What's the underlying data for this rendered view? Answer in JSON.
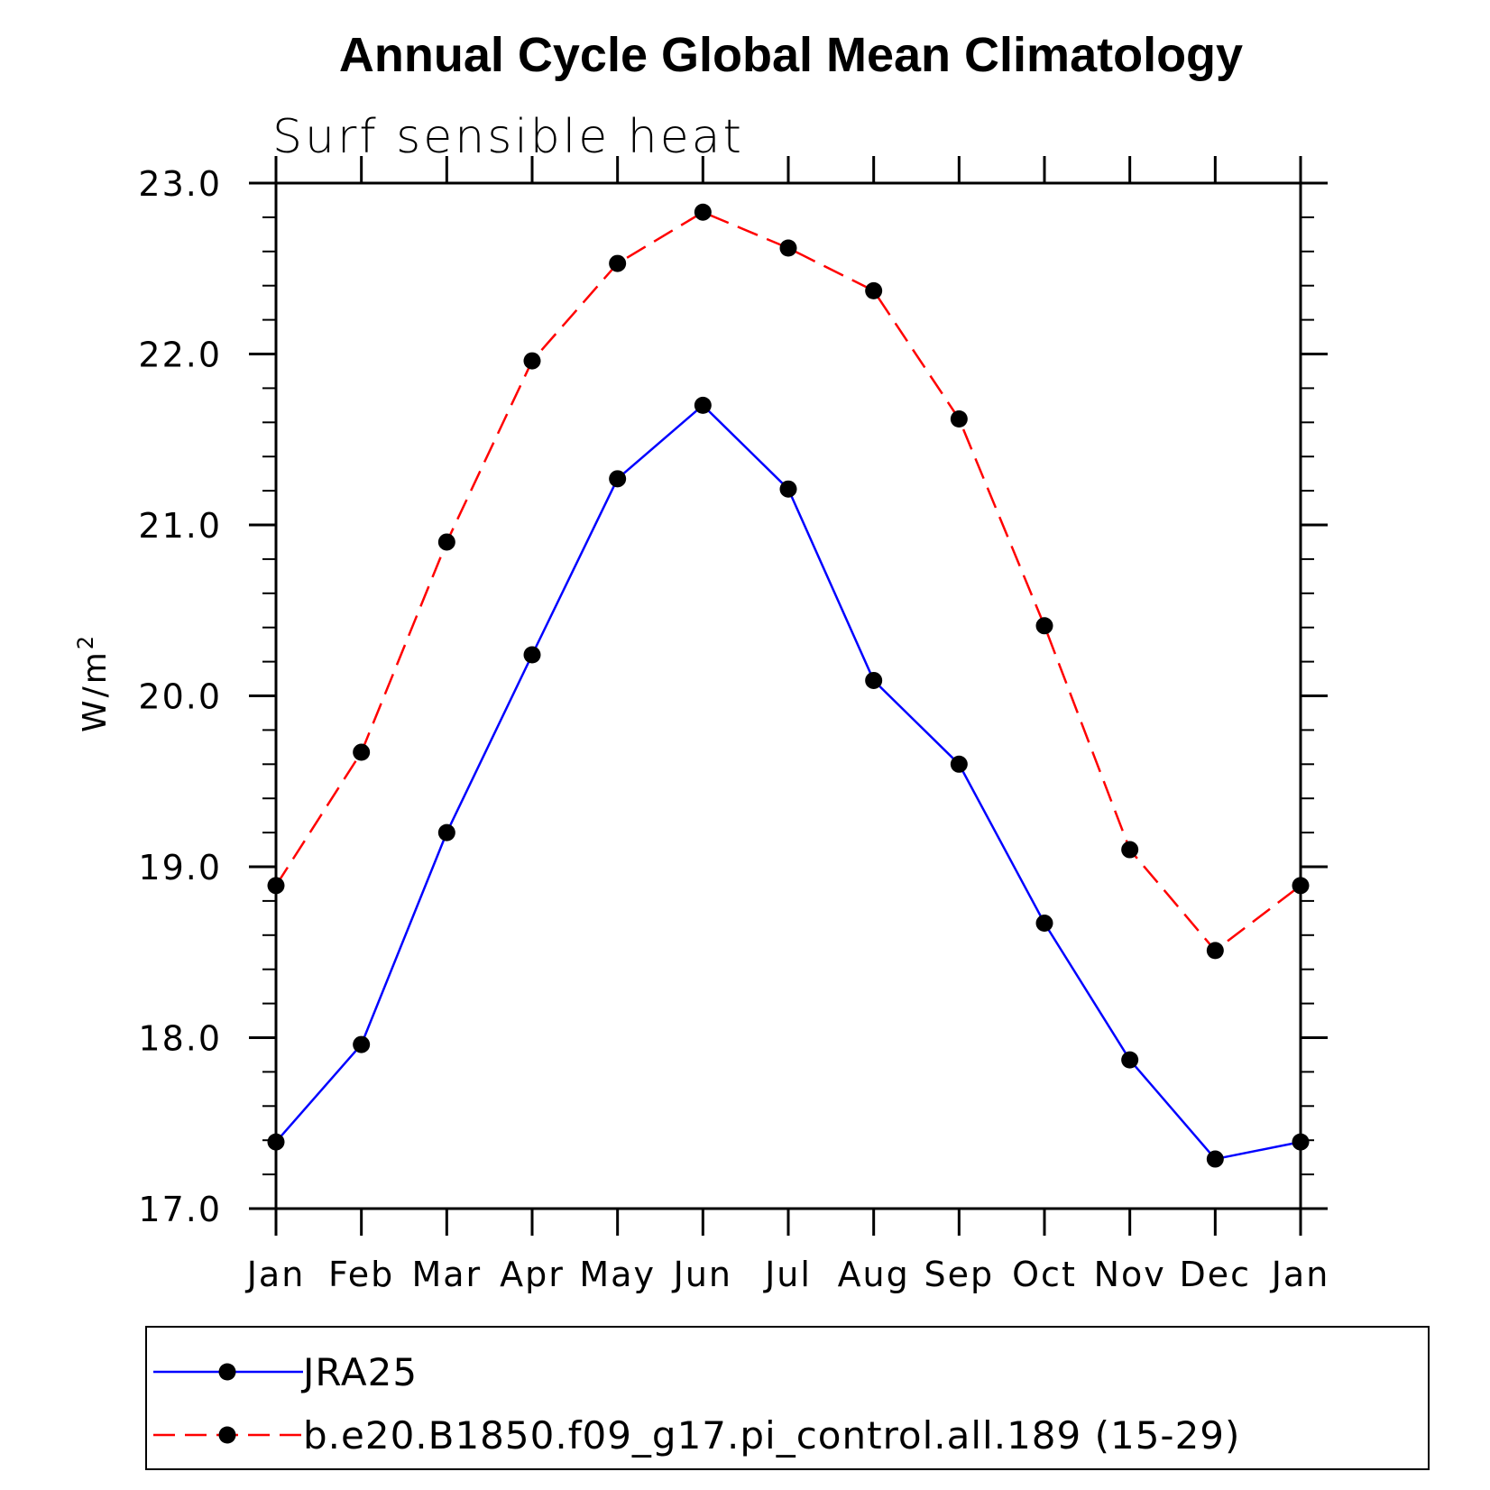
{
  "chart_data": {
    "type": "line",
    "title": "Annual Cycle Global Mean Climatology",
    "subtitle": "Surf sensible heat",
    "ylabel_base": "W/m",
    "ylabel_sup": "2",
    "xlabel": "",
    "ylim": [
      17.0,
      23.0
    ],
    "y_major_ticks": [
      17.0,
      18.0,
      19.0,
      20.0,
      21.0,
      22.0,
      23.0
    ],
    "y_tick_labels": [
      "17.0",
      "18.0",
      "19.0",
      "20.0",
      "21.0",
      "22.0",
      "23.0"
    ],
    "y_minor_step": 0.2,
    "categories": [
      "Jan",
      "Feb",
      "Mar",
      "Apr",
      "May",
      "Jun",
      "Jul",
      "Aug",
      "Sep",
      "Oct",
      "Nov",
      "Dec",
      "Jan"
    ],
    "series": [
      {
        "name": "JRA25",
        "color": "#0000ff",
        "dash": "solid",
        "marker": "circle",
        "values": [
          17.39,
          17.96,
          19.2,
          20.24,
          21.27,
          21.7,
          21.21,
          20.09,
          19.6,
          18.67,
          17.87,
          17.29,
          17.39
        ]
      },
      {
        "name": "b.e20.B1850.f09_g17.pi_control.all.189 (15-29)",
        "color": "#ff0000",
        "dash": "dashed",
        "marker": "circle",
        "values": [
          18.89,
          19.67,
          20.9,
          21.96,
          22.53,
          22.83,
          22.62,
          22.37,
          21.62,
          20.41,
          19.1,
          18.51,
          18.89
        ]
      }
    ],
    "legend_position": "bottom",
    "grid": false
  }
}
